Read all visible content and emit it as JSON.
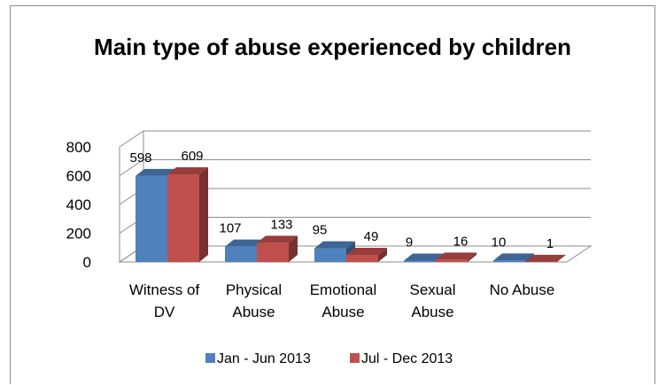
{
  "chart_data": {
    "type": "bar",
    "title": "Main type of abuse experienced by children",
    "categories": [
      [
        "Witness of",
        "DV"
      ],
      [
        "Physical",
        "Abuse"
      ],
      [
        "Emotional",
        "Abuse"
      ],
      [
        "Sexual",
        "Abuse"
      ],
      [
        "No Abuse"
      ]
    ],
    "series": [
      {
        "name": "Jan - Jun 2013",
        "values": [
          598,
          107,
          95,
          9,
          10
        ],
        "color": "#4f81bd"
      },
      {
        "name": "Jul - Dec  2013",
        "values": [
          609,
          133,
          49,
          16,
          1
        ],
        "color": "#c0504d"
      }
    ],
    "yticks": [
      0,
      200,
      400,
      600,
      800
    ],
    "ylim": [
      0,
      800
    ],
    "grid": true,
    "three_d": true,
    "legend_position": "bottom",
    "xlabel": "",
    "ylabel": ""
  }
}
